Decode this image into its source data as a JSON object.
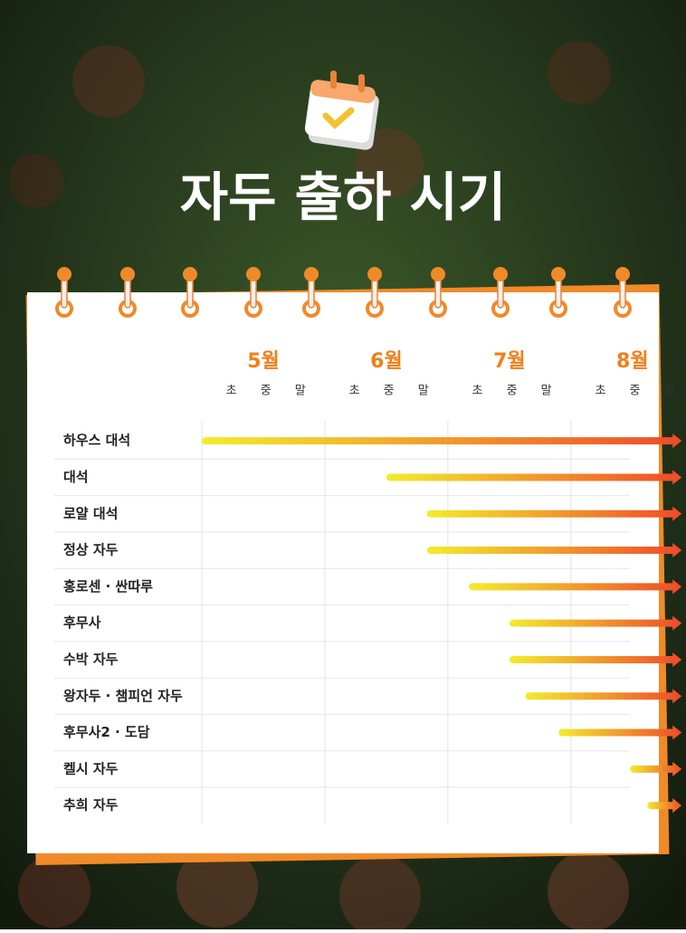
{
  "chart_data": {
    "type": "gantt",
    "title": "자두 출하 시기",
    "categories": [
      "하우스 대석",
      "대석",
      "로얄 대석",
      "정상 자두",
      "홍로센 · 싼따루",
      "후무사",
      "수박 자두",
      "왕자두 · 챔피언 자두",
      "후무사2 · 도담",
      "켈시 자두",
      "추희 자두"
    ],
    "start": [
      5.0,
      6.5,
      6.83,
      6.83,
      7.17,
      7.5,
      7.5,
      7.63,
      7.9,
      8.48,
      8.62
    ],
    "end": [
      8.9,
      8.9,
      8.9,
      8.9,
      8.9,
      8.9,
      8.9,
      8.9,
      8.9,
      8.9,
      8.9
    ],
    "xlim": [
      5,
      9
    ],
    "xticks": [
      {
        "value": 5,
        "label": "5월"
      },
      {
        "value": 6,
        "label": "6월"
      },
      {
        "value": 7,
        "label": "7월"
      },
      {
        "value": 8,
        "label": "8월"
      }
    ],
    "period_labels": [
      "초",
      "중",
      "말"
    ],
    "colors": [
      "#f3ec2c",
      "#ef4a2b"
    ],
    "grid": true
  }
}
